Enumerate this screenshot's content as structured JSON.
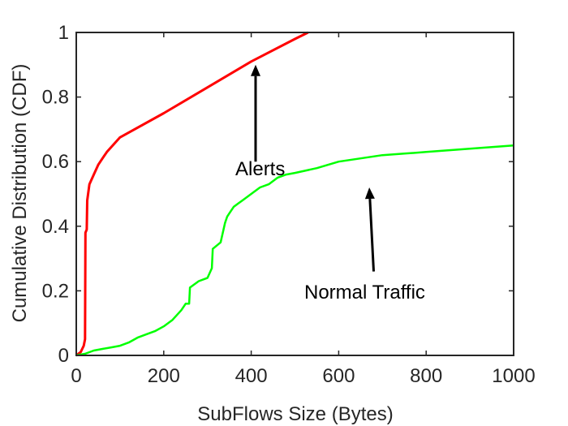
{
  "chart_data": {
    "type": "line",
    "xlabel": "SubFlows Size (Bytes)",
    "ylabel": "Cumulative Distribution (CDF)",
    "xlim": [
      0,
      1000
    ],
    "ylim": [
      0,
      1
    ],
    "grid": false,
    "x_ticks": [
      "0",
      "200",
      "400",
      "600",
      "800",
      "1000"
    ],
    "y_ticks": [
      "0",
      "0.2",
      "0.4",
      "0.6",
      "0.8",
      "1"
    ],
    "series": [
      {
        "name": "Alerts",
        "color": "#ff0000",
        "x": [
          0,
          10,
          17,
          20,
          21,
          24,
          25,
          30,
          40,
          50,
          60,
          70,
          80,
          90,
          100,
          200,
          300,
          400,
          500,
          530
        ],
        "y": [
          0,
          0.01,
          0.03,
          0.05,
          0.38,
          0.39,
          0.48,
          0.53,
          0.56,
          0.59,
          0.61,
          0.63,
          0.645,
          0.66,
          0.675,
          0.75,
          0.83,
          0.91,
          0.98,
          1.0
        ]
      },
      {
        "name": "Normal Traffic",
        "color": "#00ff00",
        "x": [
          0,
          20,
          40,
          60,
          80,
          100,
          120,
          140,
          160,
          180,
          200,
          220,
          240,
          250,
          258,
          260,
          280,
          300,
          310,
          312,
          330,
          340,
          345,
          350,
          360,
          370,
          380,
          400,
          420,
          440,
          460,
          480,
          500,
          550,
          600,
          650,
          700,
          750,
          800,
          850,
          900,
          950,
          1000
        ],
        "y": [
          0,
          0.005,
          0.015,
          0.02,
          0.025,
          0.03,
          0.04,
          0.055,
          0.065,
          0.075,
          0.09,
          0.11,
          0.14,
          0.16,
          0.16,
          0.21,
          0.23,
          0.24,
          0.27,
          0.33,
          0.35,
          0.41,
          0.43,
          0.44,
          0.46,
          0.47,
          0.48,
          0.5,
          0.52,
          0.53,
          0.55,
          0.56,
          0.565,
          0.58,
          0.6,
          0.61,
          0.62,
          0.625,
          0.63,
          0.635,
          0.64,
          0.645,
          0.65
        ]
      }
    ],
    "annotations": [
      {
        "text": "Alerts",
        "arrow_from": [
          410,
          0.6
        ],
        "arrow_to": [
          410,
          0.9
        ]
      },
      {
        "text": "Normal Traffic",
        "arrow_from": [
          680,
          0.26
        ],
        "arrow_to": [
          670,
          0.52
        ]
      }
    ]
  }
}
